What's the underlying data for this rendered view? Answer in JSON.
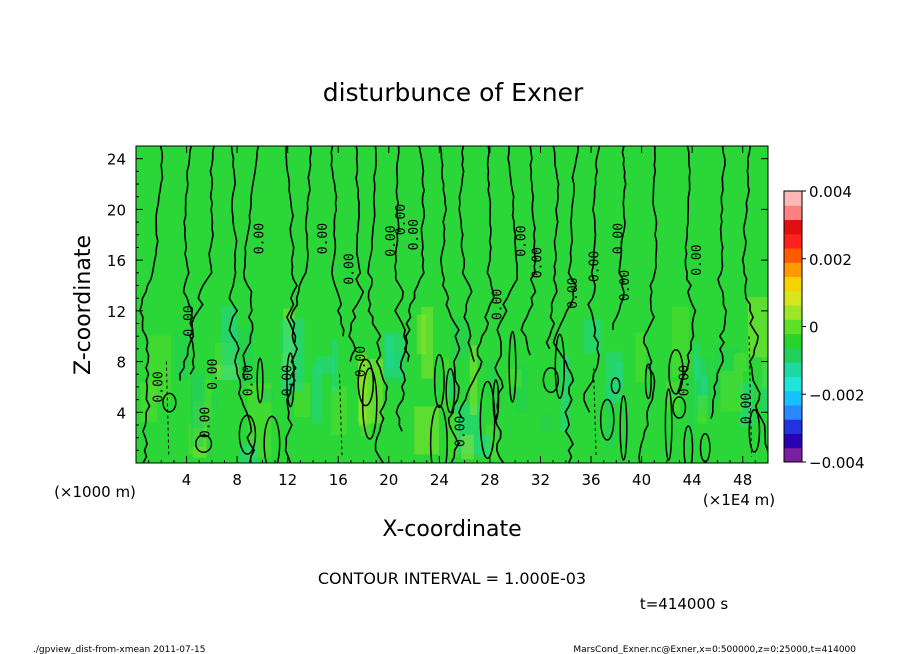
{
  "chart_data": {
    "type": "heatmap",
    "title": "disturbunce of Exner",
    "xlabel": "X-coordinate",
    "ylabel": "Z-coordinate",
    "x_unit_label": "(×1000 m)",
    "x_scale_label": "(×1E4 m)",
    "xlim": [
      0,
      50
    ],
    "ylim": [
      0,
      25
    ],
    "x_ticks": [
      4,
      8,
      12,
      16,
      20,
      24,
      28,
      32,
      36,
      40,
      44,
      48
    ],
    "y_ticks": [
      4,
      8,
      12,
      16,
      20,
      24
    ],
    "colorbar": {
      "range": [
        -0.004,
        0.004
      ],
      "tick_labels": [
        "0.004",
        "0.002",
        "0",
        "−0.002",
        "−0.004"
      ],
      "tick_values": [
        0.004,
        0.002,
        0,
        -0.002,
        -0.004
      ],
      "colors": [
        "#7a1fa0",
        "#2a00b0",
        "#2233e0",
        "#2a88ff",
        "#19c0ff",
        "#1ee6d6",
        "#1ed8a0",
        "#22cf5c",
        "#28d428",
        "#5ee028",
        "#9ce628",
        "#d6e61e",
        "#f5d200",
        "#ff9a00",
        "#ff5a00",
        "#ff2020",
        "#e01010",
        "#ff8080",
        "#ffb8b8"
      ]
    },
    "contour_interval_text": "CONTOUR INTERVAL = 1.000E-03",
    "contour_labels": [
      "0.00",
      "0.00",
      "0.00",
      "0.00",
      "0.00",
      "0.00",
      "0.00",
      "0.00",
      "0.00",
      "0.00",
      "0.00",
      "0.00",
      "0.00",
      "0.00",
      "0.00",
      "0.00",
      "0.00",
      "0.00",
      "0.00",
      "0.00",
      "0.00",
      "0.00",
      "0.00",
      "0.00"
    ],
    "time_label": "t=414000 s",
    "footer_left": "./gpview_dist-from-xmean  2011-07-15",
    "footer_right": "MarsCond_Exner.nc@Exner,x=0:500000,z=0:25000,t=414000"
  }
}
